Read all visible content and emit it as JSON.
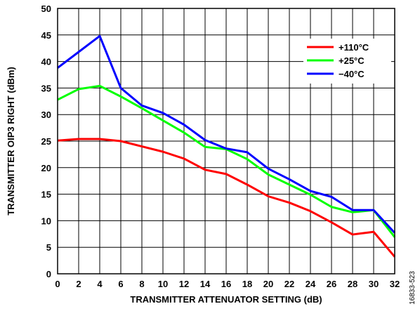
{
  "chart_data": {
    "type": "line",
    "xlabel": "TRANSMITTER ATTENUATOR SETTING (dB)",
    "ylabel": "TRANSMITTER OIP3 RIGHT (dBm)",
    "xlim": [
      0,
      32
    ],
    "ylim": [
      0,
      50
    ],
    "xticks": [
      "0",
      "2",
      "4",
      "6",
      "8",
      "10",
      "12",
      "14",
      "16",
      "18",
      "20",
      "22",
      "24",
      "26",
      "28",
      "30",
      "32"
    ],
    "yticks": [
      "0",
      "5",
      "10",
      "15",
      "20",
      "25",
      "30",
      "35",
      "40",
      "45",
      "50"
    ],
    "grid": true,
    "legend_position": "top-right",
    "x": [
      0,
      2,
      4,
      6,
      8,
      10,
      12,
      14,
      16,
      18,
      20,
      22,
      24,
      26,
      28,
      30,
      32
    ],
    "series": [
      {
        "name": "+110°C",
        "color": "#ff0000",
        "values": [
          25.1,
          25.4,
          25.4,
          25.0,
          24.0,
          23.0,
          21.7,
          19.6,
          18.8,
          16.8,
          14.6,
          13.4,
          11.8,
          9.7,
          7.4,
          7.9,
          3.2
        ]
      },
      {
        "name": "+25°C",
        "color": "#00ff00",
        "values": [
          32.8,
          34.8,
          35.4,
          33.4,
          31.2,
          28.9,
          26.6,
          23.9,
          23.5,
          21.6,
          18.7,
          16.8,
          14.9,
          12.6,
          11.6,
          12.0,
          6.9
        ]
      },
      {
        "name": "−40°C",
        "color": "#0000ff",
        "values": [
          38.8,
          41.8,
          44.8,
          35.0,
          31.7,
          30.3,
          28.1,
          25.2,
          23.6,
          22.9,
          19.8,
          17.8,
          15.6,
          14.5,
          12.0,
          12.0,
          7.7
        ]
      }
    ]
  },
  "figure_id": "16833-523"
}
